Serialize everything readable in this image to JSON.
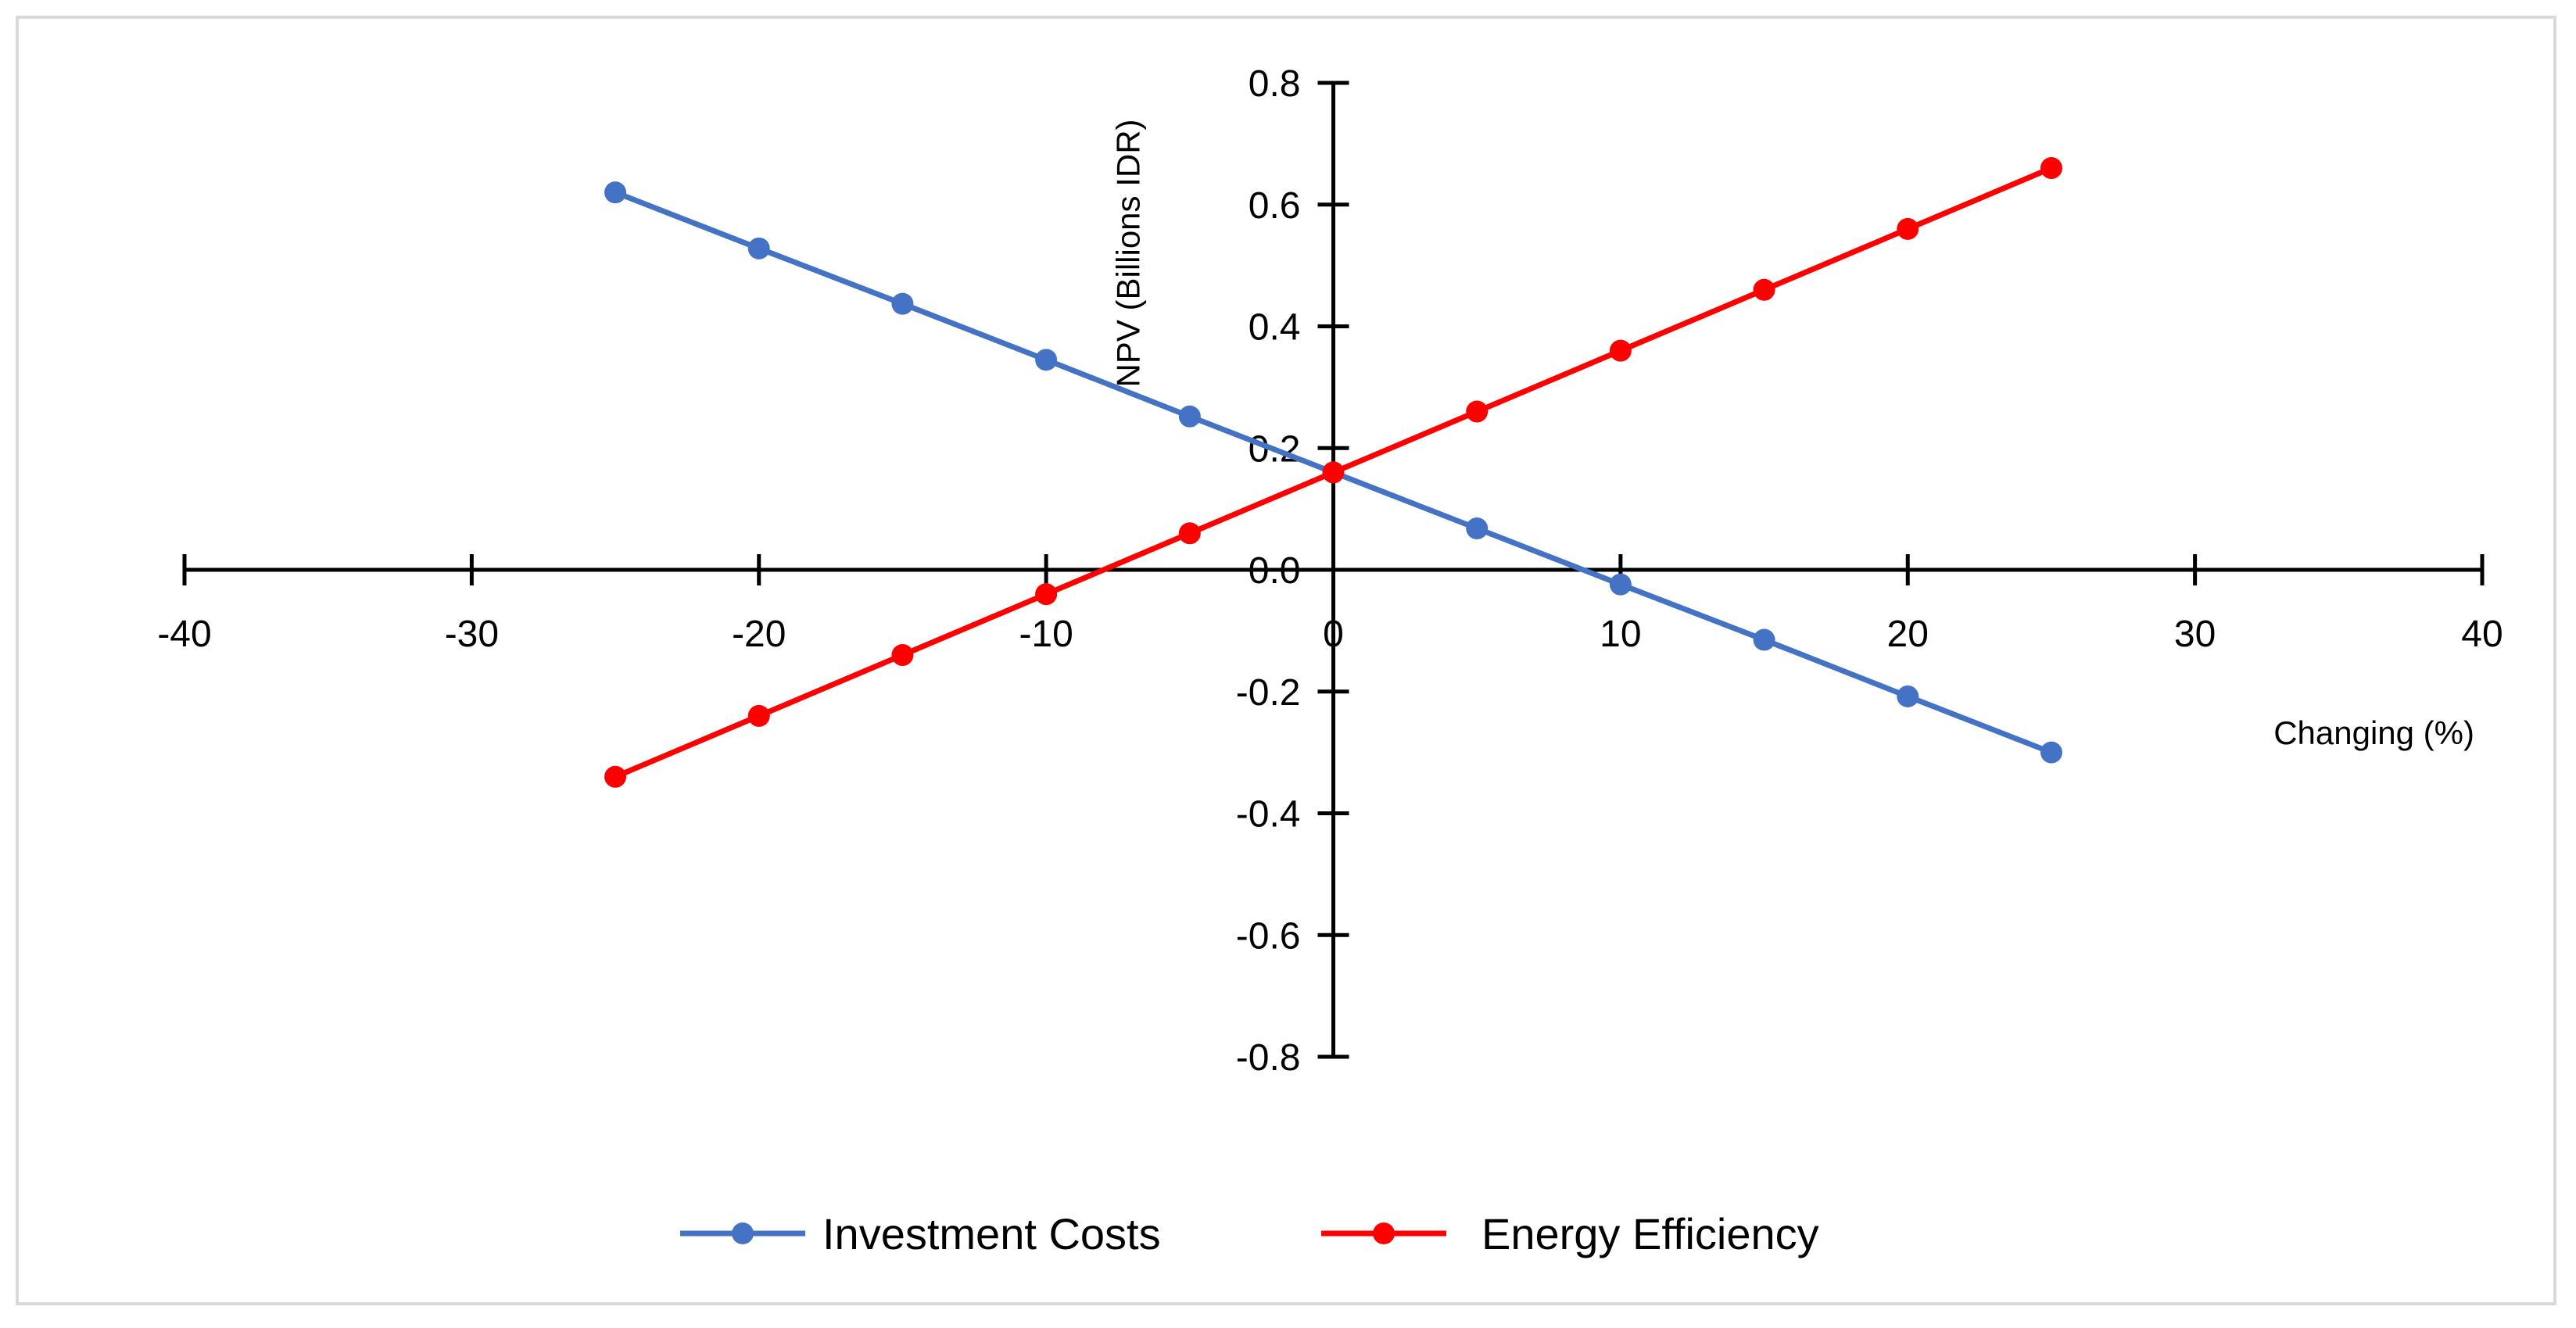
{
  "chart_data": {
    "type": "line",
    "title": "",
    "xlabel": "Changing (%)",
    "ylabel": "NPV (Billions IDR)",
    "xlim": [
      -40,
      40
    ],
    "ylim": [
      -0.8,
      0.8
    ],
    "x_ticks": [
      -40,
      -30,
      -20,
      -10,
      0,
      10,
      20,
      30,
      40
    ],
    "y_ticks": [
      0.8,
      0.6,
      0.4,
      0.2,
      0.0,
      -0.2,
      -0.4,
      -0.6,
      -0.8
    ],
    "x_tick_labels": [
      "-40",
      "-30",
      "-20",
      "-10",
      "0",
      "10",
      "20",
      "30",
      "40"
    ],
    "y_tick_labels": [
      "0.8",
      "0.6",
      "0.4",
      "0.2",
      "0.0",
      "-0.2",
      "-0.4",
      "-0.6",
      "-0.8"
    ],
    "grid": false,
    "legend_position": "bottom",
    "x": [
      -25,
      -20,
      -15,
      -10,
      -5,
      0,
      5,
      10,
      15,
      20,
      25
    ],
    "series": [
      {
        "name": "Investment Costs",
        "color": "#4472c4",
        "values": [
          0.62,
          0.528,
          0.437,
          0.345,
          0.252,
          0.16,
          0.068,
          -0.024,
          -0.115,
          -0.208,
          -0.3
        ]
      },
      {
        "name": "Energy Efficiency",
        "color": "#ff0000",
        "values": [
          -0.34,
          -0.24,
          -0.14,
          -0.04,
          0.06,
          0.16,
          0.26,
          0.36,
          0.46,
          0.56,
          0.66
        ]
      }
    ]
  }
}
